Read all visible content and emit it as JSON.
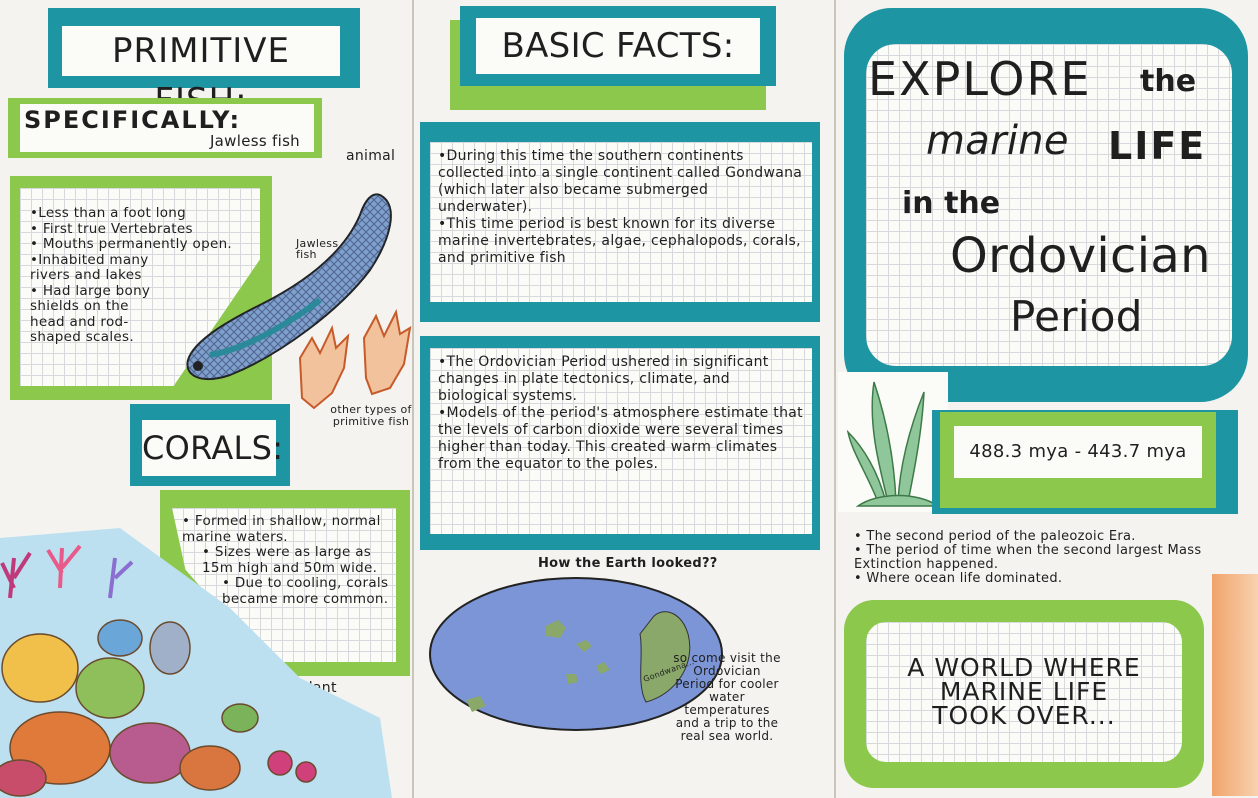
{
  "colors": {
    "teal": "#1d95a3",
    "green": "#8cc84b",
    "paper": "#fbfbf8",
    "fish_blue": "#7f9fcd",
    "coral_orange": "#e6a063",
    "ocean_blue": "#7b95d6",
    "land_green": "#8aa86a"
  },
  "left_panel": {
    "primitive_title": "PRIMITIVE FISH:",
    "specifically_title": "SPECIFICALLY:",
    "specifically_sub": "Jawless fish",
    "fish_facts": [
      "•Less than a foot long",
      "• First true Vertebrates",
      "• Mouths permanently open.",
      "•Inhabited many rivers and lakes",
      "• Had large bony shields on the head and rod-shaped scales."
    ],
    "label_animal": "animal",
    "label_jawless": "Jawless fish",
    "label_other_types": "other types of primitive fish",
    "corals_title": "CORALS:",
    "coral_facts": [
      "• Formed in shallow, normal marine waters.",
      "• Sizes were as large as 15m high and 50m wide.",
      "• Due to cooling, corals became more common."
    ],
    "label_plant": "Plant"
  },
  "middle_panel": {
    "basic_title": "BASIC FACTS:",
    "facts1": [
      "•During this time the southern continents collected into a single continent called Gondwana (which later also became submerged underwater).",
      "•This time period is best known for its diverse marine invertebrates, algae, cephalopods, corals, and primitive fish"
    ],
    "facts2": [
      "•The Ordovician Period ushered in significant changes in plate tectonics, climate, and biological systems.",
      "•Models of the period's atmosphere estimate that the levels of carbon dioxide were several times higher than today. This created warm climates from the equator to the poles."
    ],
    "earth_caption": "How the Earth looked??",
    "gondwana_label": "Gondwana...",
    "visit_text": "so come visit the Ordovician Period for cooler water temperatures and a trip to the real sea world."
  },
  "right_panel": {
    "title_line1": "EXPLORE",
    "title_the1": "the",
    "title_marine": "marine",
    "title_life": "LIFE",
    "title_in_the": "in the",
    "title_ordovician": "Ordovician",
    "title_period": "Period",
    "date_range": "488.3 mya - 443.7 mya",
    "era_facts": [
      "• The second period of the paleozoic Era.",
      "• The period of time when the second largest Mass Extinction happened.",
      "• Where ocean life dominated."
    ],
    "slogan": "A WORLD WHERE MARINE LIFE TOOK OVER..."
  }
}
